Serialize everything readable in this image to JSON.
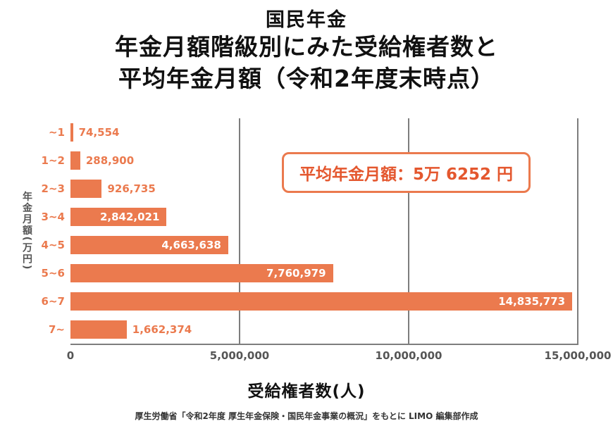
{
  "title": {
    "line1": "国民年金",
    "line2": "年金月額階級別にみた受給権者数と",
    "line3": "平均年金月額（令和2年度末時点）"
  },
  "callout": {
    "text": "平均年金月額：5万 6252 円"
  },
  "chart_data": {
    "type": "bar",
    "orientation": "horizontal",
    "title": "国民年金 年金月額階級別にみた受給権者数",
    "categories": [
      "~1",
      "1~2",
      "2~3",
      "3~4",
      "4~5",
      "5~6",
      "6~7",
      "7~"
    ],
    "values": [
      74554,
      288900,
      926735,
      2842021,
      4663638,
      7760979,
      14835773,
      1662374
    ],
    "value_labels": [
      "74,554",
      "288,900",
      "926,735",
      "2,842,021",
      "4,663,638",
      "7,760,979",
      "14,835,773",
      "1,662,374"
    ],
    "xlabel": "受給権者数(人)",
    "ylabel": "年金月額(万円)",
    "xlim": [
      0,
      15000000
    ],
    "xticks": [
      {
        "value": 0,
        "label": "0"
      },
      {
        "value": 5000000,
        "label": "5,000,000"
      },
      {
        "value": 10000000,
        "label": "10,000,000"
      },
      {
        "value": 15000000,
        "label": "15,000,000"
      }
    ],
    "grid": "vertical",
    "legend": "none",
    "bar_color": "#EB7A4E",
    "label_inside_threshold": 2000000
  },
  "footer": {
    "source": "厚生労働省「令和2年度 厚生年金保険・国民年金事業の概況」をもとに LIMO 編集部作成"
  },
  "colors": {
    "accent": "#EB7A4E",
    "callout_text": "#E4572E",
    "grid": "#7D7D7D",
    "tick_text": "#555555",
    "title_text": "#111111",
    "value_inside_text": "#FFFFFF"
  }
}
